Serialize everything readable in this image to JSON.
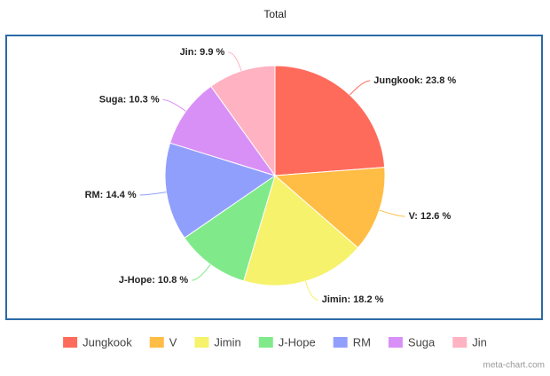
{
  "chart_data": {
    "type": "pie",
    "title": "Total",
    "categories": [
      "Jungkook",
      "V",
      "Jimin",
      "J-Hope",
      "RM",
      "Suga",
      "Jin"
    ],
    "values": [
      23.8,
      12.6,
      18.2,
      10.8,
      14.4,
      10.3,
      9.9
    ],
    "value_labels": [
      "Jungkook: 23.8 %",
      "V: 12.6 %",
      "Jimin: 18.2 %",
      "J-Hope: 10.8 %",
      "RM: 14.4 %",
      "Suga: 10.3 %",
      "Jin: 9.9 %"
    ],
    "colors": [
      "#ff6b5b",
      "#ffbd45",
      "#f6f26b",
      "#80ea8a",
      "#919ffc",
      "#d990f6",
      "#ffb2c2"
    ],
    "credit": "meta-chart.com"
  }
}
